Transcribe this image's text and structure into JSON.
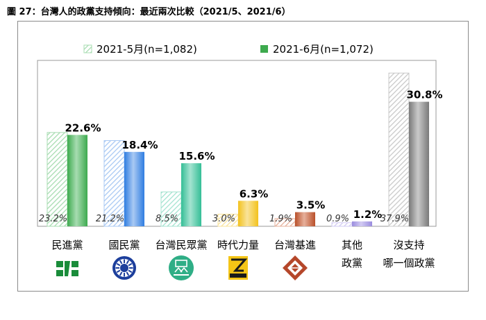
{
  "figure_title": "圖 27：台灣人的政黨支持傾向：最近兩次比較（2021/5、2021/6）",
  "colors": {
    "frame": "#8a8a8a",
    "axis": "#9a9a9a"
  },
  "chart_data": {
    "type": "bar",
    "ylim": [
      0,
      40
    ],
    "grid": false,
    "legend_position": "top-center",
    "series": [
      {
        "name": "2021-5月(n=1,082)",
        "style": "hatched",
        "values": [
          23.2,
          21.2,
          8.5,
          3.0,
          1.9,
          0.9,
          37.9
        ]
      },
      {
        "name": "2021-6月(n=1,072)",
        "style": "solid",
        "values": [
          22.6,
          18.4,
          15.6,
          6.3,
          3.5,
          1.2,
          30.8
        ]
      }
    ],
    "categories": [
      {
        "label": [
          "民進黨"
        ],
        "color": "#3daa4e",
        "light": "#a7dcb1",
        "icon": "dpp-logo-icon"
      },
      {
        "label": [
          "國民黨"
        ],
        "color": "#2f7de1",
        "light": "#a9c9f3",
        "icon": "kmt-logo-icon"
      },
      {
        "label": [
          "台灣民眾黨"
        ],
        "color": "#34be96",
        "light": "#a4e3d0",
        "icon": "tpp-logo-icon"
      },
      {
        "label": [
          "時代力量"
        ],
        "color": "#f3c21d",
        "light": "#f9e39a",
        "icon": "npp-logo-icon"
      },
      {
        "label": [
          "台灣基進"
        ],
        "color": "#b9502a",
        "light": "#e6b09b",
        "icon": "tsp-logo-icon"
      },
      {
        "label": [
          "其他",
          "政黨"
        ],
        "color": "#9a8cde",
        "light": "#d2cbf3",
        "icon": null
      },
      {
        "label": [
          "沒支持",
          "哪一個政黨"
        ],
        "color": "#7a7a7a",
        "light": "#c9c9c9",
        "icon": null
      }
    ]
  }
}
